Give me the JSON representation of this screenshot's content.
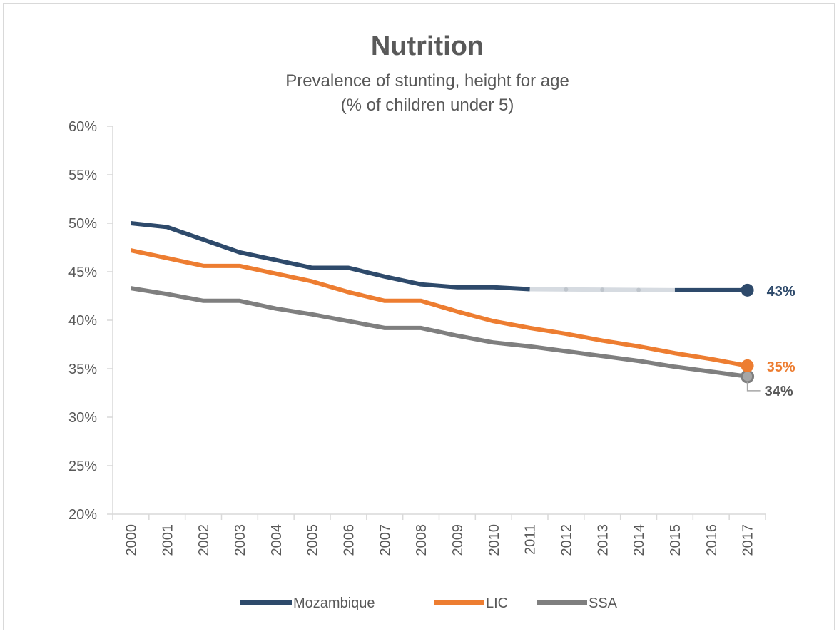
{
  "chart_data": {
    "type": "line",
    "title": "Nutrition",
    "subtitle_lines": [
      "Prevalence of stunting, height for age",
      "(% of children under 5)"
    ],
    "x": [
      "2000",
      "2001",
      "2002",
      "2003",
      "2004",
      "2005",
      "2006",
      "2007",
      "2008",
      "2009",
      "2010",
      "2011",
      "2012",
      "2013",
      "2014",
      "2015",
      "2016",
      "2017"
    ],
    "ylim": [
      0.2,
      0.6
    ],
    "yticks": [
      0.2,
      0.25,
      0.3,
      0.35,
      0.4,
      0.45,
      0.5,
      0.55,
      0.6
    ],
    "ytick_labels": [
      "20%",
      "25%",
      "30%",
      "35%",
      "40%",
      "45%",
      "50%",
      "55%",
      "60%"
    ],
    "grid": false,
    "legend_position": "bottom",
    "series": [
      {
        "name": "Mozambique",
        "color": "#2e4a6b",
        "values": [
          0.5,
          0.496,
          0.483,
          0.47,
          0.462,
          0.454,
          0.454,
          0.445,
          0.437,
          0.434,
          0.434,
          0.432,
          null,
          null,
          null,
          0.431,
          0.431,
          0.431
        ],
        "interpolated_gap": {
          "from": "2011",
          "to": "2015",
          "color": "#d6dbe1",
          "dot_color": "#bfc5cc"
        },
        "end_label": "43%"
      },
      {
        "name": "LIC",
        "color": "#ed7d31",
        "values": [
          0.472,
          0.464,
          0.456,
          0.456,
          0.448,
          0.44,
          0.429,
          0.42,
          0.42,
          0.409,
          0.399,
          0.392,
          0.386,
          0.379,
          0.373,
          0.366,
          0.36,
          0.353
        ],
        "end_label": "35%"
      },
      {
        "name": "SSA",
        "color": "#7f7f7f",
        "values": [
          0.433,
          0.427,
          0.42,
          0.42,
          0.412,
          0.406,
          0.399,
          0.392,
          0.392,
          0.384,
          0.377,
          0.373,
          0.368,
          0.363,
          0.358,
          0.352,
          0.347,
          0.342
        ],
        "end_label": "34%"
      }
    ]
  }
}
